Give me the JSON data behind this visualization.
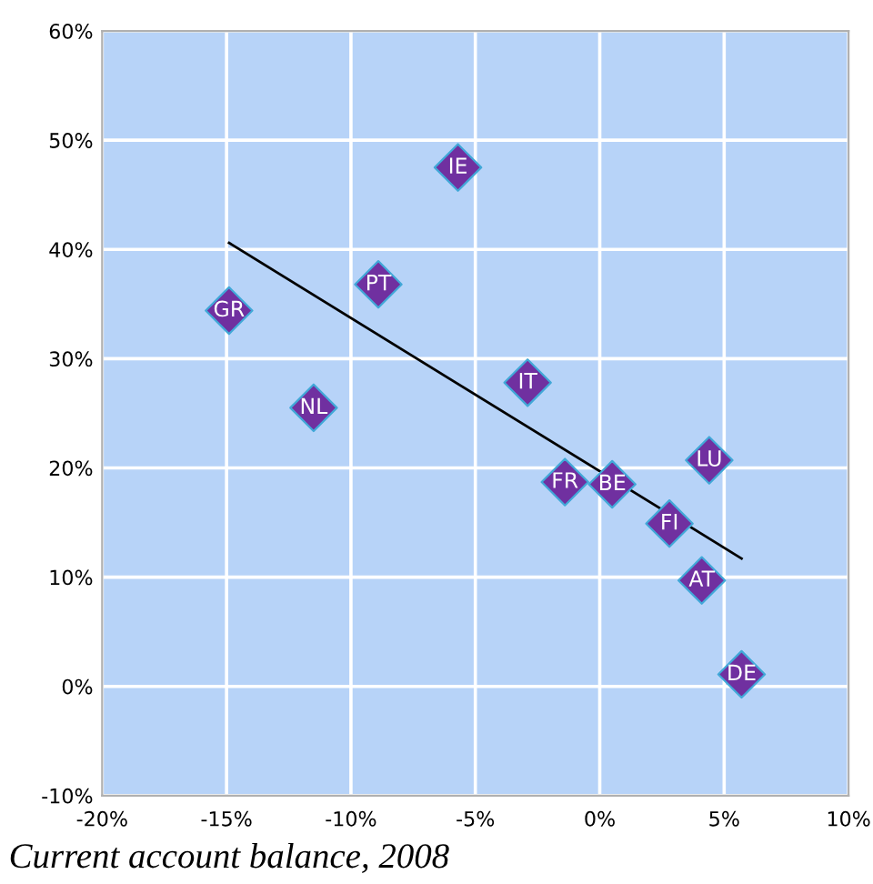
{
  "chart_data": {
    "type": "scatter",
    "xlabel": "Current account balance, 2008",
    "xlim": [
      -20,
      10
    ],
    "ylim": [
      -10,
      60
    ],
    "xticks": [
      {
        "value": -20,
        "label": "-20%"
      },
      {
        "value": -15,
        "label": "-15%"
      },
      {
        "value": -10,
        "label": "-10%"
      },
      {
        "value": -5,
        "label": "-5%"
      },
      {
        "value": 0,
        "label": "0%"
      },
      {
        "value": 5,
        "label": "5%"
      },
      {
        "value": 10,
        "label": "10%"
      }
    ],
    "yticks": [
      {
        "value": -10,
        "label": "-10%"
      },
      {
        "value": 0,
        "label": "0%"
      },
      {
        "value": 10,
        "label": "10%"
      },
      {
        "value": 20,
        "label": "20%"
      },
      {
        "value": 30,
        "label": "30%"
      },
      {
        "value": 40,
        "label": "40%"
      },
      {
        "value": 50,
        "label": "50%"
      },
      {
        "value": 60,
        "label": "60%"
      }
    ],
    "grid": true,
    "series": [
      {
        "marker": "diamond",
        "color": "#7030a0",
        "x": [
          -14.9,
          -5.7,
          -8.9,
          -11.5,
          -2.9,
          -1.4,
          0.5,
          4.4,
          2.8,
          4.1,
          5.7
        ],
        "values": [
          34.4,
          47.5,
          36.8,
          25.5,
          27.8,
          18.7,
          18.5,
          20.7,
          14.9,
          9.7,
          1.1
        ]
      },
      {
        "type": "line",
        "color": "#000000",
        "x": [
          -14.9,
          5.7
        ],
        "values": [
          40.6,
          11.7
        ]
      }
    ],
    "annotations": [
      {
        "text": "GR",
        "x": -14.9,
        "y": 34.4
      },
      {
        "text": "IE",
        "x": -5.7,
        "y": 47.5
      },
      {
        "text": "PT",
        "x": -8.9,
        "y": 36.8
      },
      {
        "text": "NL",
        "x": -11.5,
        "y": 25.5
      },
      {
        "text": "IT",
        "x": -2.9,
        "y": 27.8
      },
      {
        "text": "FR",
        "x": -1.4,
        "y": 18.7
      },
      {
        "text": "BE",
        "x": 0.5,
        "y": 18.5
      },
      {
        "text": "LU",
        "x": 4.4,
        "y": 20.7
      },
      {
        "text": "FI",
        "x": 2.8,
        "y": 14.9
      },
      {
        "text": "AT",
        "x": 4.1,
        "y": 9.7
      },
      {
        "text": "DE",
        "x": 5.7,
        "y": 1.1
      }
    ]
  }
}
